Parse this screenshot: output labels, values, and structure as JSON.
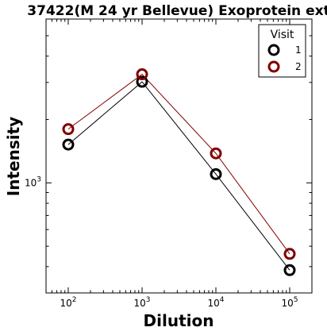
{
  "chart_data": {
    "type": "line",
    "title": "37422(M 24 yr Bellevue) Exoprotein ext",
    "xlabel": "Dilution",
    "ylabel": "Intensity",
    "xscale": "log",
    "yscale": "log",
    "xlim": [
      50,
      200000
    ],
    "ylim": [
      300,
      6000
    ],
    "x": [
      100,
      1000,
      10000,
      100000
    ],
    "x_ticks": [
      {
        "value": 100,
        "base": "10",
        "exp": "2"
      },
      {
        "value": 1000,
        "base": "10",
        "exp": "3"
      },
      {
        "value": 10000,
        "base": "10",
        "exp": "4"
      },
      {
        "value": 100000,
        "base": "10",
        "exp": "5"
      }
    ],
    "y_ticks": [
      {
        "value": 1000,
        "base": "10",
        "exp": "3"
      }
    ],
    "series": [
      {
        "name": "1",
        "color": "#000000",
        "values": [
          1520,
          3020,
          1100,
          385
        ]
      },
      {
        "name": "2",
        "color": "#800000",
        "values": [
          1800,
          3280,
          1380,
          460
        ]
      }
    ],
    "legend": {
      "title": "Visit",
      "position": "top-right"
    },
    "grid": false
  }
}
